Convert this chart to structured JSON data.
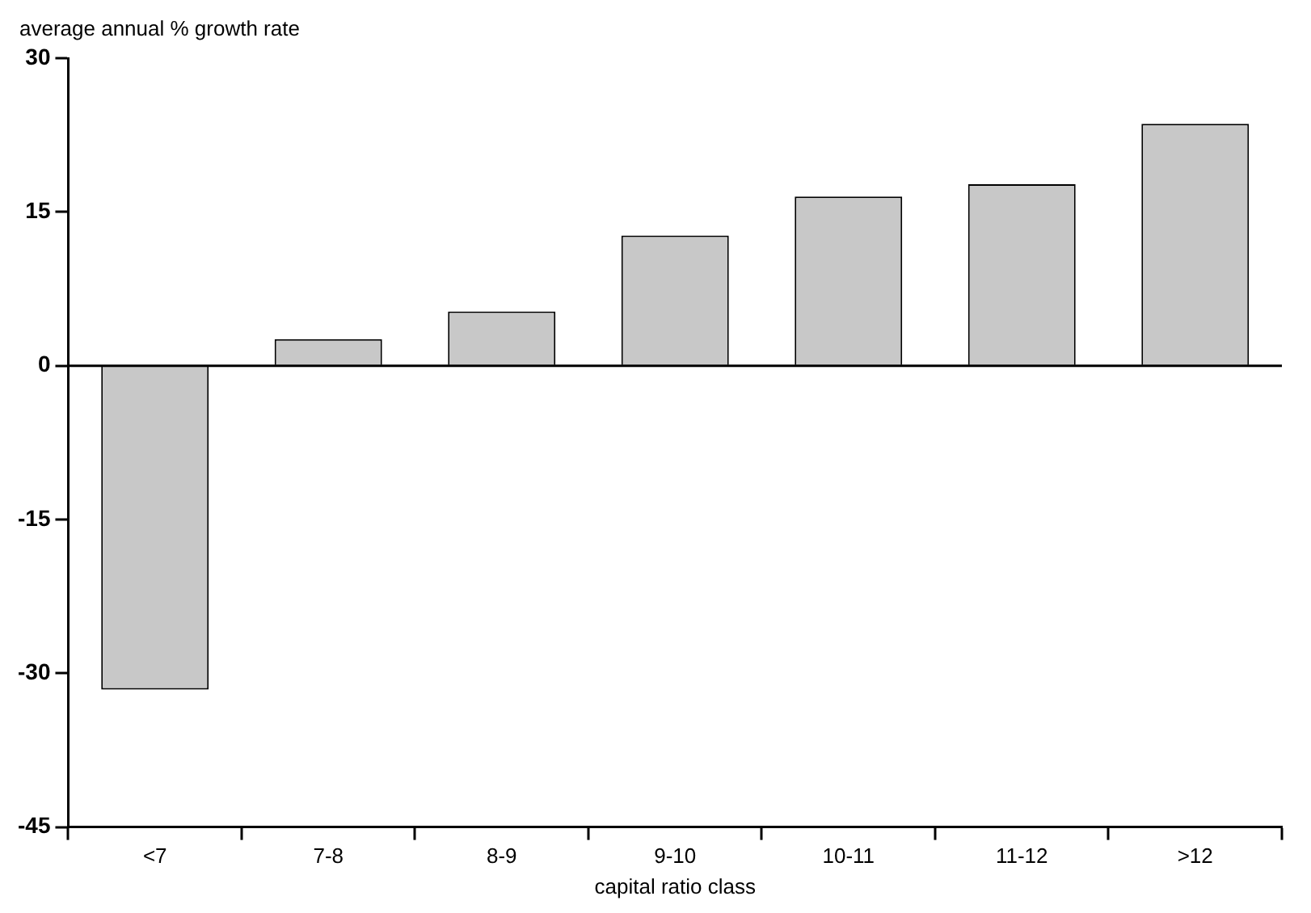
{
  "chart_data": {
    "type": "bar",
    "ylabel": "average annual % growth rate",
    "xlabel": "capital ratio class",
    "categories": [
      "<7",
      "7-8",
      "8-9",
      "9-10",
      "10-11",
      "11-12",
      ">12"
    ],
    "values": [
      -31.6,
      2.6,
      5.3,
      12.7,
      16.5,
      17.7,
      23.6
    ],
    "color": "#c8c8c8",
    "ylim": [
      -45,
      30
    ],
    "yticks": [
      -45,
      -30,
      -15,
      0,
      15,
      30
    ],
    "ref_lines": [
      {
        "axis": "y",
        "value": 0,
        "color": "#000000"
      }
    ],
    "grid": false,
    "legend": false
  }
}
